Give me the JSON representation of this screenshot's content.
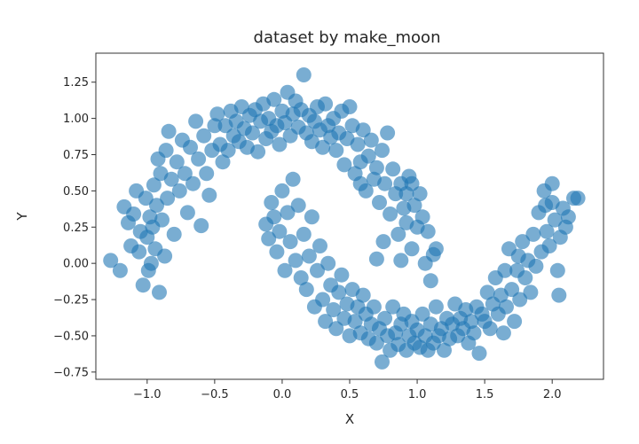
{
  "chart_data": {
    "type": "scatter",
    "title": "dataset by make_moon",
    "xlabel": "X",
    "ylabel": "Y",
    "xlim": [
      -1.38,
      2.38
    ],
    "ylim": [
      -0.8,
      1.45
    ],
    "xticks": [
      -1.0,
      -0.5,
      0.0,
      0.5,
      1.0,
      1.5,
      2.0
    ],
    "xtick_labels": [
      "−1.0",
      "−0.5",
      "0.0",
      "0.5",
      "1.0",
      "1.5",
      "2.0"
    ],
    "yticks": [
      -0.75,
      -0.5,
      -0.25,
      0.0,
      0.25,
      0.5,
      0.75,
      1.0,
      1.25
    ],
    "ytick_labels": [
      "−0.75",
      "−0.50",
      "−0.25",
      "0.00",
      "0.25",
      "0.50",
      "0.75",
      "1.00",
      "1.25"
    ],
    "grid": false,
    "marker_color": "#1f77b4",
    "marker_alpha": 0.6,
    "series": [
      {
        "points": [
          [
            -1.27,
            0.02
          ],
          [
            -1.2,
            -0.05
          ],
          [
            -1.17,
            0.39
          ],
          [
            -1.14,
            0.28
          ],
          [
            -1.12,
            0.12
          ],
          [
            -1.1,
            0.34
          ],
          [
            -1.08,
            0.5
          ],
          [
            -1.06,
            0.08
          ],
          [
            -1.05,
            0.22
          ],
          [
            -1.03,
            -0.15
          ],
          [
            -1.01,
            0.45
          ],
          [
            -1.0,
            0.18
          ],
          [
            -0.99,
            -0.05
          ],
          [
            -0.98,
            0.32
          ],
          [
            -0.97,
            0.0
          ],
          [
            -0.96,
            0.25
          ],
          [
            -0.95,
            0.54
          ],
          [
            -0.94,
            0.1
          ],
          [
            -0.93,
            0.4
          ],
          [
            -0.92,
            0.72
          ],
          [
            -0.91,
            -0.2
          ],
          [
            -0.9,
            0.62
          ],
          [
            -0.89,
            0.3
          ],
          [
            -0.87,
            0.05
          ],
          [
            -0.86,
            0.78
          ],
          [
            -0.85,
            0.45
          ],
          [
            -0.84,
            0.91
          ],
          [
            -0.82,
            0.58
          ],
          [
            -0.8,
            0.2
          ],
          [
            -0.78,
            0.7
          ],
          [
            -0.76,
            0.5
          ],
          [
            -0.74,
            0.85
          ],
          [
            -0.72,
            0.62
          ],
          [
            -0.7,
            0.35
          ],
          [
            -0.68,
            0.8
          ],
          [
            -0.66,
            0.55
          ],
          [
            -0.64,
            0.98
          ],
          [
            -0.62,
            0.72
          ],
          [
            -0.6,
            0.26
          ],
          [
            -0.58,
            0.88
          ],
          [
            -0.56,
            0.62
          ],
          [
            -0.54,
            0.47
          ],
          [
            -0.52,
            0.78
          ],
          [
            -0.5,
            0.95
          ],
          [
            -0.48,
            1.03
          ],
          [
            -0.46,
            0.82
          ],
          [
            -0.44,
            0.7
          ],
          [
            -0.42,
            0.95
          ],
          [
            -0.4,
            0.78
          ],
          [
            -0.38,
            1.05
          ],
          [
            -0.36,
            0.88
          ],
          [
            -0.34,
            0.98
          ],
          [
            -0.32,
            0.84
          ],
          [
            -0.3,
            1.08
          ],
          [
            -0.28,
            0.93
          ],
          [
            -0.26,
            0.8
          ],
          [
            -0.24,
            1.02
          ],
          [
            -0.22,
            0.9
          ],
          [
            -0.2,
            1.06
          ],
          [
            -0.18,
            0.77
          ],
          [
            -0.16,
            0.98
          ],
          [
            -0.14,
            1.1
          ],
          [
            -0.12,
            0.86
          ],
          [
            -0.1,
            1.0
          ],
          [
            -0.08,
            0.91
          ],
          [
            -0.06,
            1.13
          ],
          [
            -0.04,
            0.95
          ],
          [
            -0.02,
            0.82
          ],
          [
            0.0,
            1.05
          ],
          [
            0.02,
            0.97
          ],
          [
            0.04,
            1.18
          ],
          [
            0.06,
            0.88
          ],
          [
            0.08,
            1.03
          ],
          [
            0.1,
            1.12
          ],
          [
            0.12,
            0.94
          ],
          [
            0.14,
            1.06
          ],
          [
            0.16,
            1.3
          ],
          [
            0.18,
            0.9
          ],
          [
            0.2,
            1.02
          ],
          [
            0.22,
            0.84
          ],
          [
            0.24,
            0.98
          ],
          [
            0.26,
            1.08
          ],
          [
            0.28,
            0.92
          ],
          [
            0.3,
            0.8
          ],
          [
            0.32,
            1.1
          ],
          [
            0.34,
            0.95
          ],
          [
            0.36,
            0.87
          ],
          [
            0.38,
            1.0
          ],
          [
            0.4,
            0.78
          ],
          [
            0.42,
            0.9
          ],
          [
            0.44,
            1.05
          ],
          [
            0.46,
            0.68
          ],
          [
            0.48,
            0.86
          ],
          [
            0.5,
            1.08
          ],
          [
            0.52,
            0.95
          ],
          [
            0.54,
            0.62
          ],
          [
            0.56,
            0.82
          ],
          [
            0.58,
            0.7
          ],
          [
            0.6,
            0.92
          ],
          [
            0.62,
            0.5
          ],
          [
            0.64,
            0.74
          ],
          [
            0.66,
            0.85
          ],
          [
            0.68,
            0.58
          ],
          [
            0.7,
            0.66
          ],
          [
            0.72,
            0.42
          ],
          [
            0.74,
            0.78
          ],
          [
            0.76,
            0.55
          ],
          [
            0.78,
            0.9
          ],
          [
            0.8,
            0.34
          ],
          [
            0.82,
            0.65
          ],
          [
            0.84,
            0.48
          ],
          [
            0.86,
            0.2
          ],
          [
            0.88,
            0.55
          ],
          [
            0.9,
            0.38
          ],
          [
            0.92,
            0.28
          ],
          [
            0.94,
            0.6
          ],
          [
            0.96,
            0.1
          ],
          [
            0.98,
            0.4
          ],
          [
            1.0,
            0.25
          ],
          [
            1.02,
            0.48
          ],
          [
            1.04,
            0.32
          ],
          [
            1.06,
            0.0
          ],
          [
            1.08,
            0.22
          ],
          [
            1.1,
            -0.12
          ],
          [
            1.12,
            0.06
          ],
          [
            1.14,
            0.1
          ],
          [
            0.7,
            0.03
          ],
          [
            0.75,
            0.15
          ],
          [
            0.88,
            0.02
          ],
          [
            0.92,
            0.48
          ],
          [
            0.96,
            0.55
          ],
          [
            0.58,
            0.55
          ]
        ]
      },
      {
        "points": [
          [
            -0.12,
            0.27
          ],
          [
            -0.1,
            0.17
          ],
          [
            -0.08,
            0.42
          ],
          [
            -0.06,
            0.32
          ],
          [
            -0.04,
            0.08
          ],
          [
            -0.02,
            0.22
          ],
          [
            0.0,
            0.5
          ],
          [
            0.02,
            -0.05
          ],
          [
            0.04,
            0.35
          ],
          [
            0.06,
            0.15
          ],
          [
            0.08,
            0.58
          ],
          [
            0.1,
            0.02
          ],
          [
            0.12,
            0.4
          ],
          [
            0.14,
            -0.1
          ],
          [
            0.16,
            0.2
          ],
          [
            0.18,
            -0.18
          ],
          [
            0.2,
            0.05
          ],
          [
            0.22,
            0.32
          ],
          [
            0.24,
            -0.3
          ],
          [
            0.26,
            -0.05
          ],
          [
            0.28,
            0.12
          ],
          [
            0.3,
            -0.25
          ],
          [
            0.32,
            -0.4
          ],
          [
            0.34,
            0.0
          ],
          [
            0.36,
            -0.15
          ],
          [
            0.38,
            -0.32
          ],
          [
            0.4,
            -0.45
          ],
          [
            0.42,
            -0.2
          ],
          [
            0.44,
            -0.08
          ],
          [
            0.46,
            -0.38
          ],
          [
            0.48,
            -0.28
          ],
          [
            0.5,
            -0.5
          ],
          [
            0.52,
            -0.18
          ],
          [
            0.54,
            -0.4
          ],
          [
            0.56,
            -0.3
          ],
          [
            0.58,
            -0.48
          ],
          [
            0.6,
            -0.22
          ],
          [
            0.62,
            -0.35
          ],
          [
            0.64,
            -0.52
          ],
          [
            0.66,
            -0.42
          ],
          [
            0.68,
            -0.3
          ],
          [
            0.7,
            -0.55
          ],
          [
            0.72,
            -0.45
          ],
          [
            0.74,
            -0.68
          ],
          [
            0.76,
            -0.38
          ],
          [
            0.78,
            -0.5
          ],
          [
            0.8,
            -0.6
          ],
          [
            0.82,
            -0.3
          ],
          [
            0.84,
            -0.48
          ],
          [
            0.86,
            -0.56
          ],
          [
            0.88,
            -0.42
          ],
          [
            0.9,
            -0.35
          ],
          [
            0.92,
            -0.6
          ],
          [
            0.94,
            -0.5
          ],
          [
            0.96,
            -0.4
          ],
          [
            0.98,
            -0.55
          ],
          [
            1.0,
            -0.46
          ],
          [
            1.02,
            -0.58
          ],
          [
            1.04,
            -0.35
          ],
          [
            1.06,
            -0.5
          ],
          [
            1.08,
            -0.6
          ],
          [
            1.1,
            -0.42
          ],
          [
            1.12,
            -0.55
          ],
          [
            1.14,
            -0.3
          ],
          [
            1.16,
            -0.5
          ],
          [
            1.18,
            -0.45
          ],
          [
            1.2,
            -0.6
          ],
          [
            1.22,
            -0.38
          ],
          [
            1.24,
            -0.52
          ],
          [
            1.26,
            -0.42
          ],
          [
            1.28,
            -0.28
          ],
          [
            1.3,
            -0.5
          ],
          [
            1.32,
            -0.38
          ],
          [
            1.34,
            -0.45
          ],
          [
            1.36,
            -0.32
          ],
          [
            1.38,
            -0.55
          ],
          [
            1.4,
            -0.4
          ],
          [
            1.42,
            -0.48
          ],
          [
            1.44,
            -0.3
          ],
          [
            1.46,
            -0.62
          ],
          [
            1.48,
            -0.35
          ],
          [
            1.5,
            -0.4
          ],
          [
            1.52,
            -0.2
          ],
          [
            1.54,
            -0.45
          ],
          [
            1.56,
            -0.28
          ],
          [
            1.58,
            -0.1
          ],
          [
            1.6,
            -0.35
          ],
          [
            1.62,
            -0.22
          ],
          [
            1.64,
            -0.48
          ],
          [
            1.66,
            -0.3
          ],
          [
            1.68,
            0.1
          ],
          [
            1.7,
            -0.18
          ],
          [
            1.72,
            -0.4
          ],
          [
            1.74,
            -0.05
          ],
          [
            1.76,
            -0.25
          ],
          [
            1.78,
            0.15
          ],
          [
            1.8,
            -0.1
          ],
          [
            1.82,
            0.02
          ],
          [
            1.84,
            -0.2
          ],
          [
            1.86,
            0.2
          ],
          [
            1.88,
            -0.02
          ],
          [
            1.9,
            0.35
          ],
          [
            1.92,
            0.08
          ],
          [
            1.94,
            0.5
          ],
          [
            1.96,
            0.22
          ],
          [
            1.98,
            0.12
          ],
          [
            2.0,
            0.42
          ],
          [
            2.02,
            0.3
          ],
          [
            2.04,
            -0.05
          ],
          [
            2.06,
            0.18
          ],
          [
            2.08,
            0.38
          ],
          [
            2.1,
            0.25
          ],
          [
            2.12,
            0.32
          ],
          [
            2.16,
            0.45
          ],
          [
            2.19,
            0.45
          ],
          [
            1.65,
            -0.05
          ],
          [
            1.75,
            0.05
          ],
          [
            1.95,
            0.4
          ],
          [
            2.0,
            0.55
          ],
          [
            2.05,
            -0.22
          ]
        ]
      }
    ]
  }
}
